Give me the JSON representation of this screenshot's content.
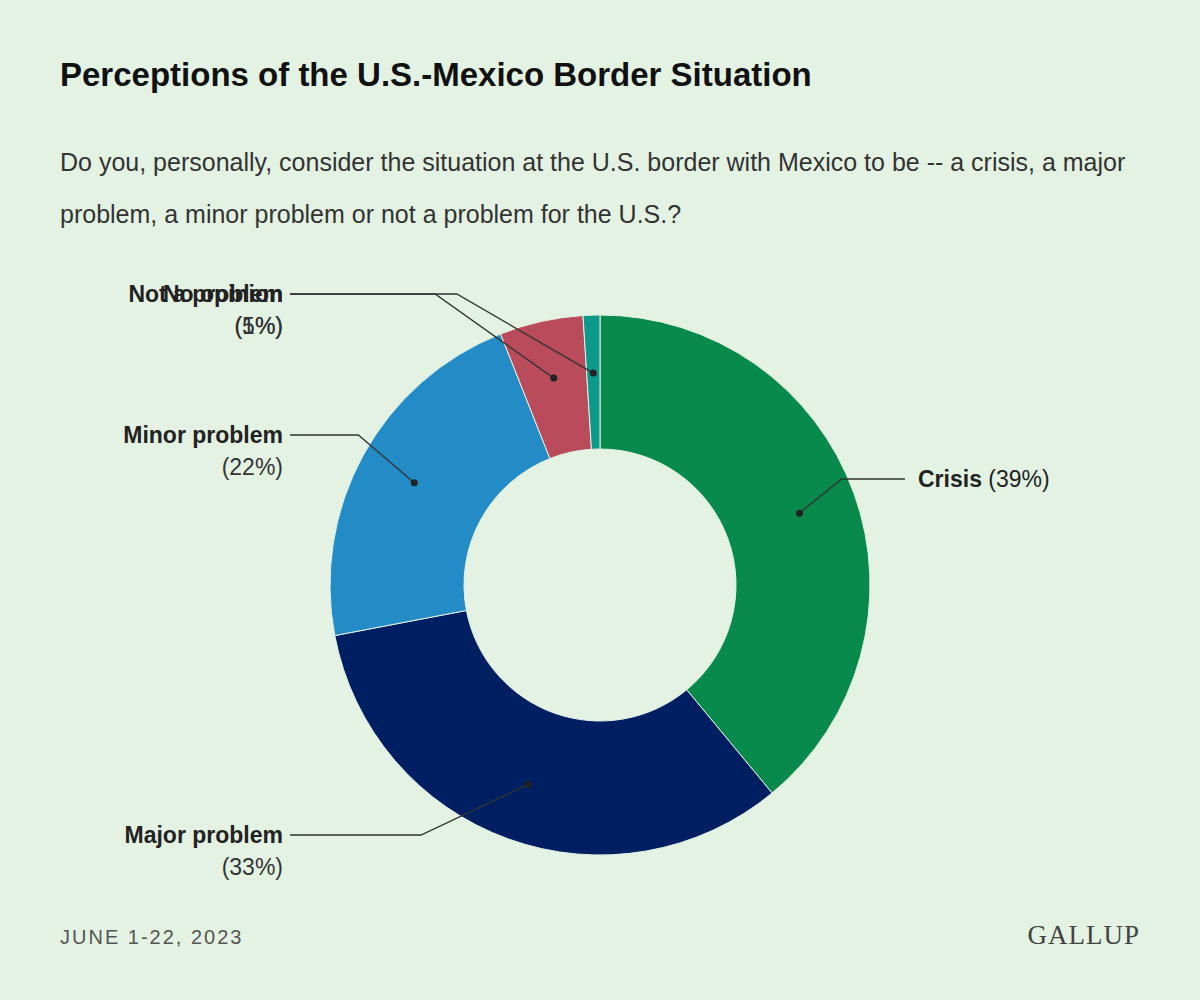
{
  "chart_data": {
    "type": "donut",
    "title": "Perceptions of the U.S.-Mexico Border Situation",
    "subtitle": "Do you, personally, consider the situation at the U.S. border with Mexico to be -- a crisis, a major problem, a minor problem or not a problem for the U.S.?",
    "categories": [
      "Crisis",
      "Major problem",
      "Minor problem",
      "Not a problem",
      "No opinion"
    ],
    "values": [
      39,
      33,
      22,
      5,
      1
    ],
    "value_labels": [
      "(39%)",
      "(33%)",
      "(22%)",
      "(5%)",
      "(1%)"
    ],
    "colors": [
      "#078a4c",
      "#001f62",
      "#238cc6",
      "#b94b5a",
      "#0d9a8c"
    ],
    "data_labels": true,
    "date": "JUNE 1-22, 2023",
    "source": "GALLUP"
  }
}
